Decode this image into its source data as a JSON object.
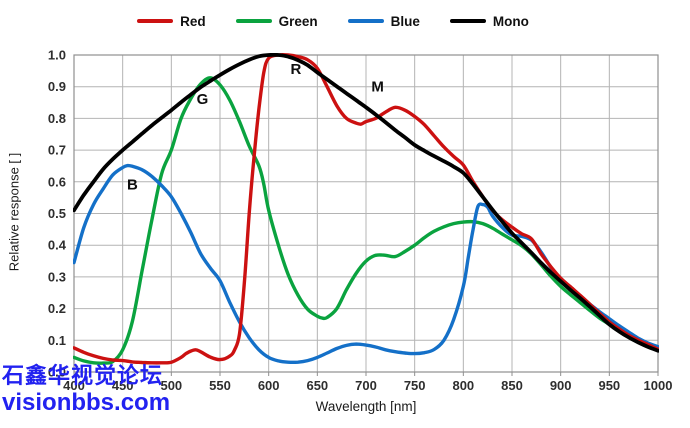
{
  "watermark": {
    "line1": "石鑫华视觉论坛",
    "line2": "visionbbs.com",
    "color": "#2222f0"
  },
  "chart_data": {
    "type": "line",
    "title": "",
    "xlabel": "Wavelength [nm]",
    "ylabel": "Relative response [ ]",
    "xlim": [
      400,
      1000
    ],
    "ylim": [
      0,
      1.0
    ],
    "grid": true,
    "background": "#ffffff",
    "style": {
      "grid_color": "#b4b4b4",
      "axis_color": "#8f8f8f",
      "tick_text_color": "#2e2e2e"
    },
    "x_ticks": [
      400,
      450,
      500,
      550,
      600,
      650,
      700,
      750,
      800,
      850,
      900,
      950,
      1000
    ],
    "x_tick_labels": [
      "400",
      "450",
      "500",
      "550",
      "600",
      "650",
      "700",
      "750",
      "800",
      "850",
      "900",
      "950",
      "1000"
    ],
    "y_ticks": [
      0,
      0.1,
      0.2,
      0.3,
      0.4,
      0.5,
      0.6,
      0.7,
      0.8,
      0.9,
      1.0
    ],
    "y_tick_labels": [
      "0.0",
      "0.1",
      "0.2",
      "0.3",
      "0.4",
      "0.5",
      "0.6",
      "0.7",
      "0.8",
      "0.9",
      "1.0"
    ],
    "legend": {
      "position": "top",
      "entries": [
        "Red",
        "Green",
        "Blue",
        "Mono"
      ]
    },
    "series": [
      {
        "name": "Red",
        "color": "#cc1111",
        "curve_label": "R",
        "curve_label_at": [
          628,
          0.94
        ],
        "points": [
          [
            400,
            0.076
          ],
          [
            410,
            0.062
          ],
          [
            420,
            0.051
          ],
          [
            430,
            0.043
          ],
          [
            440,
            0.038
          ],
          [
            450,
            0.036
          ],
          [
            460,
            0.032
          ],
          [
            470,
            0.03
          ],
          [
            480,
            0.029
          ],
          [
            490,
            0.029
          ],
          [
            500,
            0.031
          ],
          [
            510,
            0.046
          ],
          [
            515,
            0.058
          ],
          [
            520,
            0.066
          ],
          [
            525,
            0.07
          ],
          [
            530,
            0.064
          ],
          [
            540,
            0.047
          ],
          [
            550,
            0.039
          ],
          [
            560,
            0.05
          ],
          [
            565,
            0.07
          ],
          [
            570,
            0.12
          ],
          [
            575,
            0.28
          ],
          [
            580,
            0.5
          ],
          [
            585,
            0.68
          ],
          [
            590,
            0.83
          ],
          [
            595,
            0.945
          ],
          [
            600,
            0.99
          ],
          [
            610,
            1.0
          ],
          [
            620,
            1.0
          ],
          [
            630,
            0.995
          ],
          [
            640,
            0.985
          ],
          [
            650,
            0.958
          ],
          [
            660,
            0.9
          ],
          [
            670,
            0.84
          ],
          [
            680,
            0.8
          ],
          [
            690,
            0.785
          ],
          [
            695,
            0.782
          ],
          [
            700,
            0.79
          ],
          [
            710,
            0.8
          ],
          [
            720,
            0.82
          ],
          [
            730,
            0.835
          ],
          [
            740,
            0.826
          ],
          [
            750,
            0.806
          ],
          [
            760,
            0.78
          ],
          [
            770,
            0.745
          ],
          [
            780,
            0.71
          ],
          [
            790,
            0.68
          ],
          [
            800,
            0.653
          ],
          [
            810,
            0.6
          ],
          [
            820,
            0.553
          ],
          [
            830,
            0.51
          ],
          [
            840,
            0.48
          ],
          [
            850,
            0.457
          ],
          [
            860,
            0.436
          ],
          [
            870,
            0.42
          ],
          [
            880,
            0.372
          ],
          [
            890,
            0.332
          ],
          [
            900,
            0.296
          ],
          [
            910,
            0.269
          ],
          [
            920,
            0.242
          ],
          [
            930,
            0.214
          ],
          [
            940,
            0.185
          ],
          [
            950,
            0.158
          ],
          [
            960,
            0.136
          ],
          [
            970,
            0.116
          ],
          [
            980,
            0.1
          ],
          [
            990,
            0.086
          ],
          [
            1000,
            0.072
          ]
        ]
      },
      {
        "name": "Green",
        "color": "#0aa33f",
        "curve_label": "G",
        "curve_label_at": [
          532,
          0.845
        ],
        "points": [
          [
            400,
            0.046
          ],
          [
            410,
            0.035
          ],
          [
            420,
            0.029
          ],
          [
            430,
            0.028
          ],
          [
            440,
            0.033
          ],
          [
            450,
            0.07
          ],
          [
            460,
            0.16
          ],
          [
            470,
            0.32
          ],
          [
            480,
            0.48
          ],
          [
            490,
            0.625
          ],
          [
            500,
            0.7
          ],
          [
            510,
            0.8
          ],
          [
            520,
            0.862
          ],
          [
            530,
            0.908
          ],
          [
            540,
            0.928
          ],
          [
            550,
            0.906
          ],
          [
            560,
            0.858
          ],
          [
            570,
            0.79
          ],
          [
            580,
            0.713
          ],
          [
            590,
            0.65
          ],
          [
            595,
            0.592
          ],
          [
            600,
            0.51
          ],
          [
            610,
            0.4
          ],
          [
            620,
            0.308
          ],
          [
            630,
            0.243
          ],
          [
            640,
            0.198
          ],
          [
            650,
            0.176
          ],
          [
            655,
            0.17
          ],
          [
            660,
            0.172
          ],
          [
            670,
            0.2
          ],
          [
            680,
            0.26
          ],
          [
            690,
            0.312
          ],
          [
            700,
            0.35
          ],
          [
            710,
            0.368
          ],
          [
            720,
            0.368
          ],
          [
            730,
            0.364
          ],
          [
            740,
            0.38
          ],
          [
            750,
            0.4
          ],
          [
            760,
            0.424
          ],
          [
            770,
            0.444
          ],
          [
            780,
            0.458
          ],
          [
            790,
            0.468
          ],
          [
            800,
            0.473
          ],
          [
            810,
            0.474
          ],
          [
            820,
            0.468
          ],
          [
            830,
            0.454
          ],
          [
            840,
            0.435
          ],
          [
            850,
            0.417
          ],
          [
            860,
            0.398
          ],
          [
            870,
            0.372
          ],
          [
            880,
            0.338
          ],
          [
            890,
            0.302
          ],
          [
            900,
            0.27
          ],
          [
            910,
            0.244
          ],
          [
            920,
            0.219
          ],
          [
            930,
            0.194
          ],
          [
            940,
            0.17
          ],
          [
            950,
            0.15
          ],
          [
            960,
            0.128
          ],
          [
            970,
            0.109
          ],
          [
            980,
            0.093
          ],
          [
            990,
            0.079
          ],
          [
            1000,
            0.068
          ]
        ]
      },
      {
        "name": "Blue",
        "color": "#1470c8",
        "curve_label": "B",
        "curve_label_at": [
          460,
          0.575
        ],
        "points": [
          [
            400,
            0.345
          ],
          [
            410,
            0.455
          ],
          [
            420,
            0.528
          ],
          [
            430,
            0.578
          ],
          [
            440,
            0.622
          ],
          [
            450,
            0.645
          ],
          [
            455,
            0.651
          ],
          [
            460,
            0.649
          ],
          [
            470,
            0.638
          ],
          [
            480,
            0.617
          ],
          [
            490,
            0.588
          ],
          [
            500,
            0.553
          ],
          [
            510,
            0.5
          ],
          [
            520,
            0.44
          ],
          [
            530,
            0.374
          ],
          [
            540,
            0.328
          ],
          [
            550,
            0.288
          ],
          [
            560,
            0.22
          ],
          [
            570,
            0.158
          ],
          [
            580,
            0.108
          ],
          [
            590,
            0.07
          ],
          [
            600,
            0.046
          ],
          [
            610,
            0.035
          ],
          [
            620,
            0.031
          ],
          [
            630,
            0.031
          ],
          [
            640,
            0.036
          ],
          [
            650,
            0.046
          ],
          [
            660,
            0.06
          ],
          [
            670,
            0.074
          ],
          [
            680,
            0.084
          ],
          [
            690,
            0.088
          ],
          [
            700,
            0.085
          ],
          [
            710,
            0.079
          ],
          [
            720,
            0.07
          ],
          [
            730,
            0.064
          ],
          [
            740,
            0.06
          ],
          [
            750,
            0.058
          ],
          [
            760,
            0.061
          ],
          [
            770,
            0.071
          ],
          [
            780,
            0.1
          ],
          [
            790,
            0.165
          ],
          [
            800,
            0.27
          ],
          [
            805,
            0.36
          ],
          [
            810,
            0.45
          ],
          [
            815,
            0.522
          ],
          [
            820,
            0.528
          ],
          [
            825,
            0.52
          ],
          [
            830,
            0.492
          ],
          [
            840,
            0.456
          ],
          [
            850,
            0.432
          ],
          [
            860,
            0.428
          ],
          [
            870,
            0.416
          ],
          [
            880,
            0.378
          ],
          [
            890,
            0.33
          ],
          [
            900,
            0.292
          ],
          [
            910,
            0.266
          ],
          [
            920,
            0.24
          ],
          [
            930,
            0.214
          ],
          [
            940,
            0.19
          ],
          [
            950,
            0.168
          ],
          [
            960,
            0.146
          ],
          [
            970,
            0.126
          ],
          [
            980,
            0.106
          ],
          [
            990,
            0.091
          ],
          [
            1000,
            0.08
          ]
        ]
      },
      {
        "name": "Mono",
        "color": "#000000",
        "curve_label": "M",
        "curve_label_at": [
          712,
          0.885
        ],
        "points": [
          [
            400,
            0.51
          ],
          [
            410,
            0.558
          ],
          [
            420,
            0.6
          ],
          [
            430,
            0.64
          ],
          [
            440,
            0.672
          ],
          [
            450,
            0.7
          ],
          [
            460,
            0.726
          ],
          [
            470,
            0.752
          ],
          [
            480,
            0.778
          ],
          [
            490,
            0.802
          ],
          [
            500,
            0.826
          ],
          [
            510,
            0.851
          ],
          [
            520,
            0.875
          ],
          [
            530,
            0.898
          ],
          [
            540,
            0.918
          ],
          [
            550,
            0.937
          ],
          [
            560,
            0.955
          ],
          [
            570,
            0.971
          ],
          [
            580,
            0.985
          ],
          [
            590,
            0.996
          ],
          [
            600,
            1.0
          ],
          [
            610,
            1.0
          ],
          [
            620,
            0.995
          ],
          [
            630,
            0.984
          ],
          [
            640,
            0.968
          ],
          [
            650,
            0.945
          ],
          [
            660,
            0.923
          ],
          [
            670,
            0.901
          ],
          [
            680,
            0.879
          ],
          [
            690,
            0.857
          ],
          [
            700,
            0.835
          ],
          [
            710,
            0.812
          ],
          [
            720,
            0.788
          ],
          [
            730,
            0.763
          ],
          [
            740,
            0.74
          ],
          [
            750,
            0.716
          ],
          [
            760,
            0.698
          ],
          [
            770,
            0.681
          ],
          [
            780,
            0.665
          ],
          [
            790,
            0.648
          ],
          [
            800,
            0.628
          ],
          [
            810,
            0.592
          ],
          [
            820,
            0.552
          ],
          [
            830,
            0.512
          ],
          [
            840,
            0.474
          ],
          [
            850,
            0.438
          ],
          [
            860,
            0.407
          ],
          [
            870,
            0.376
          ],
          [
            880,
            0.344
          ],
          [
            890,
            0.314
          ],
          [
            900,
            0.286
          ],
          [
            910,
            0.259
          ],
          [
            920,
            0.233
          ],
          [
            930,
            0.206
          ],
          [
            940,
            0.178
          ],
          [
            950,
            0.15
          ],
          [
            960,
            0.128
          ],
          [
            970,
            0.109
          ],
          [
            980,
            0.093
          ],
          [
            990,
            0.079
          ],
          [
            1000,
            0.067
          ]
        ]
      }
    ]
  }
}
